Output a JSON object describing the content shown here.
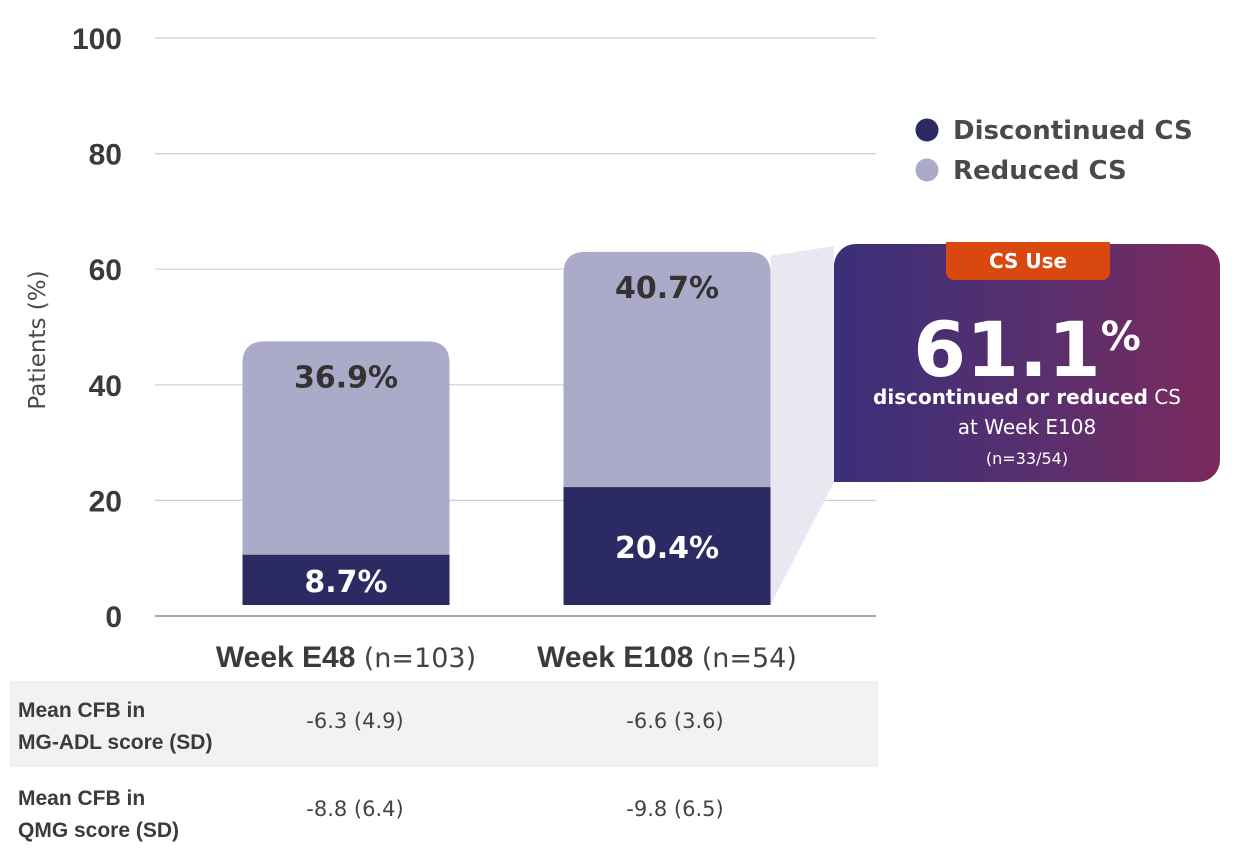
{
  "chart_data": {
    "type": "bar",
    "stacked": true,
    "ylabel": "Patients (%)",
    "ylim": [
      0,
      100
    ],
    "yticks": [
      0,
      20,
      40,
      60,
      80,
      100
    ],
    "grid": true,
    "legend_position": "top-right",
    "categories": [
      {
        "name": "Week E48",
        "n_label": "(n=103)"
      },
      {
        "name": "Week E108",
        "n_label": "(n=54)"
      }
    ],
    "series": [
      {
        "name": "Discontinued CS",
        "color": "#2b2a63",
        "values": [
          8.7,
          20.4
        ],
        "labels": [
          "8.7%",
          "20.4%"
        ]
      },
      {
        "name": "Reduced CS",
        "color": "#abaac8",
        "values": [
          36.9,
          40.7
        ],
        "labels": [
          "36.9%",
          "40.7%"
        ]
      }
    ]
  },
  "callout": {
    "tag": "CS Use",
    "value": "61.1",
    "unit": "%",
    "line1_bold": "discontinued or reduced",
    "line1_rest": " CS",
    "line2": "at Week E108",
    "line3": "(n=33/54)"
  },
  "table": {
    "rows": [
      {
        "label_line1": "Mean CFB in",
        "label_line2": "MG-ADL score (SD)",
        "values": [
          "-6.3 (4.9)",
          "-6.6 (3.6)"
        ]
      },
      {
        "label_line1": "Mean CFB in",
        "label_line2": "QMG score (SD)",
        "values": [
          "-8.8 (6.4)",
          "-9.8 (6.5)"
        ]
      }
    ]
  }
}
